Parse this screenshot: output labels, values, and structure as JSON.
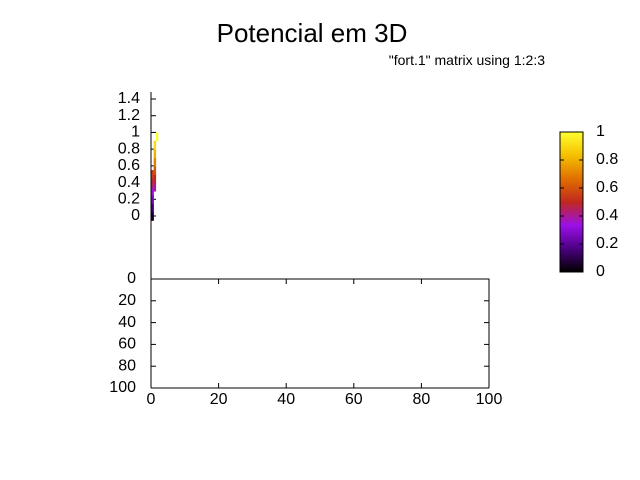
{
  "chart_data": {
    "type": "heatmap",
    "title": "Potencial em 3D",
    "legend_entry": "\"fort.1\" matrix using 1:2:3",
    "legend_placement": "top-right",
    "grid": false,
    "x_axis": {
      "range": [
        0,
        100
      ],
      "ticks": [
        "0",
        "20",
        "40",
        "60",
        "80",
        "100"
      ]
    },
    "y_axis": {
      "range": [
        0,
        100
      ],
      "reversed": true,
      "ticks": [
        "0",
        "20",
        "40",
        "60",
        "80",
        "100"
      ]
    },
    "z_axis": {
      "range": [
        0,
        1.4
      ],
      "ticks": [
        "0",
        "0.2",
        "0.4",
        "0.6",
        "0.8",
        "1",
        "1.2",
        "1.4"
      ]
    },
    "colorbox": {
      "range": [
        0,
        1
      ],
      "ticks": [
        "0",
        "0.2",
        "0.4",
        "0.6",
        "0.8",
        "1"
      ],
      "palette": [
        "#000000",
        "#4b0082",
        "#9b10e8",
        "#c0281e",
        "#e07000",
        "#f5c000",
        "#ffff30"
      ]
    },
    "series": [
      {
        "x": [
          0,
          0,
          0,
          0,
          0,
          0,
          1,
          1,
          1,
          1,
          1,
          1,
          2
        ],
        "z": [
          0.05,
          0.15,
          0.25,
          0.35,
          0.45,
          0.55,
          0.4,
          0.5,
          0.6,
          0.7,
          0.8,
          0.9,
          1.0
        ]
      }
    ]
  }
}
